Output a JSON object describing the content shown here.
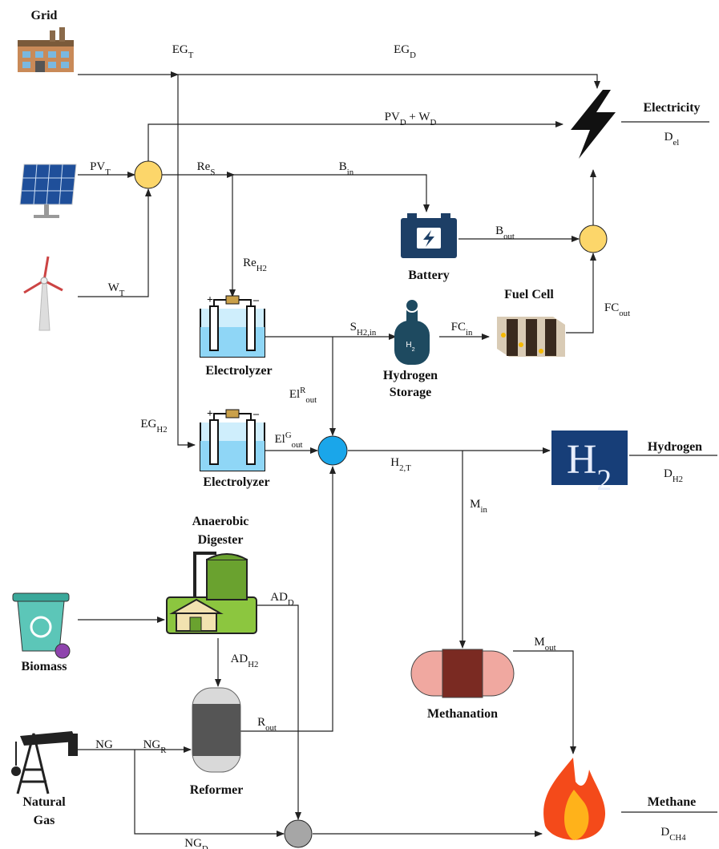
{
  "nodes": {
    "grid": "Grid",
    "battery": "Battery",
    "fuel_cell": "Fuel Cell",
    "electrolyzer_1": "Electrolyzer",
    "electrolyzer_2": "Electrolyzer",
    "hydrogen_storage": [
      "Hydrogen",
      "Storage"
    ],
    "anaerobic_digester": [
      "Anaerobic",
      "Digester"
    ],
    "biomass": "Biomass",
    "reformer": "Reformer",
    "natural_gas": [
      "Natural",
      "Gas"
    ],
    "methanation": "Methanation"
  },
  "icons": {
    "hydrogen_storage": [
      {
        "base": "H"
      },
      {
        "sub": "2"
      }
    ],
    "hydrogen": [
      {
        "base": "H"
      },
      {
        "sub": "2"
      }
    ]
  },
  "outputs": {
    "electricity": {
      "title": "Electricity",
      "demand": [
        {
          "base": "D"
        },
        {
          "sub": "el"
        }
      ]
    },
    "hydrogen": {
      "title": "Hydrogen",
      "demand": [
        {
          "base": "D"
        },
        {
          "sub": "H2"
        }
      ]
    },
    "methane": {
      "title": "Methane",
      "demand": [
        {
          "base": "D"
        },
        {
          "sub": "CH4"
        }
      ]
    }
  },
  "flows": {
    "eg_t": [
      {
        "base": "EG"
      },
      {
        "sub": "T"
      }
    ],
    "eg_d": [
      {
        "base": "EG"
      },
      {
        "sub": "D"
      }
    ],
    "pv_w_d": [
      {
        "base": "PV"
      },
      {
        "sub": "D"
      },
      {
        "base": " + W"
      },
      {
        "sub": "D"
      }
    ],
    "pv_t": [
      {
        "base": "PV"
      },
      {
        "sub": "T"
      }
    ],
    "re_s": [
      {
        "base": "Re"
      },
      {
        "sub": "S"
      }
    ],
    "b_in": [
      {
        "base": "B"
      },
      {
        "sub": "in"
      }
    ],
    "re_h2": [
      {
        "base": "Re"
      },
      {
        "sub": "H2"
      }
    ],
    "w_t": [
      {
        "base": "W"
      },
      {
        "sub": "T"
      }
    ],
    "b_out": [
      {
        "base": "B"
      },
      {
        "sub": "out"
      }
    ],
    "fc_out": [
      {
        "base": "FC"
      },
      {
        "sub": "out"
      }
    ],
    "s_h2_in": [
      {
        "base": "S"
      },
      {
        "sub": "H2,in"
      }
    ],
    "fc_in": [
      {
        "base": "FC"
      },
      {
        "sub": "in"
      }
    ],
    "el_r_out": [
      {
        "base": "El"
      },
      {
        "sup": "R"
      },
      {
        "sub": "out"
      }
    ],
    "eg_h2": [
      {
        "base": "EG"
      },
      {
        "sub": "H2"
      }
    ],
    "el_g_out": [
      {
        "base": "El"
      },
      {
        "sup": "G"
      },
      {
        "sub": "out"
      }
    ],
    "h2_t": [
      {
        "base": "H"
      },
      {
        "sub": "2,T"
      }
    ],
    "m_in": [
      {
        "base": "M"
      },
      {
        "sub": "in"
      }
    ],
    "ad_d": [
      {
        "base": "AD"
      },
      {
        "sub": "D"
      }
    ],
    "ad_h2": [
      {
        "base": "AD"
      },
      {
        "sub": "H2"
      }
    ],
    "r_out": [
      {
        "base": "R"
      },
      {
        "sub": "out"
      }
    ],
    "ng": [
      {
        "base": "NG"
      }
    ],
    "ng_r": [
      {
        "base": "NG"
      },
      {
        "sub": "R"
      }
    ],
    "ng_d": [
      {
        "base": "NG"
      },
      {
        "sub": "D"
      }
    ],
    "m_out": [
      {
        "base": "M"
      },
      {
        "sub": "out"
      }
    ]
  }
}
